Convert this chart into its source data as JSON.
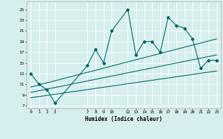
{
  "xlabel": "Humidex (Indice chaleur)",
  "ylabel": "",
  "background_color": "#d6eeee",
  "grid_color": "#ffffff",
  "line_color": "#006666",
  "x_ticks": [
    0,
    1,
    2,
    3,
    7,
    8,
    9,
    10,
    12,
    13,
    14,
    15,
    16,
    17,
    18,
    19,
    20,
    21,
    22,
    23
  ],
  "y_ticks": [
    7,
    9,
    11,
    13,
    15,
    17,
    19,
    21,
    23,
    25
  ],
  "xlim": [
    -0.5,
    23.5
  ],
  "ylim": [
    6.5,
    26.5
  ],
  "main_x": [
    0,
    1,
    2,
    3,
    7,
    8,
    9,
    10,
    12,
    13,
    14,
    15,
    16,
    17,
    18,
    19,
    20,
    21,
    22,
    23
  ],
  "main_y": [
    13,
    11,
    10,
    7.5,
    14.5,
    17.5,
    15,
    21,
    25,
    16.5,
    19,
    19,
    17,
    23.5,
    22,
    21.5,
    19.5,
    14,
    15.5,
    15.5
  ],
  "trend1_x": [
    0,
    23
  ],
  "trend1_y": [
    10.5,
    19.5
  ],
  "trend2_x": [
    0,
    23
  ],
  "trend2_y": [
    8.5,
    13.5
  ],
  "trend3_x": [
    0,
    23
  ],
  "trend3_y": [
    9.5,
    16.5
  ]
}
